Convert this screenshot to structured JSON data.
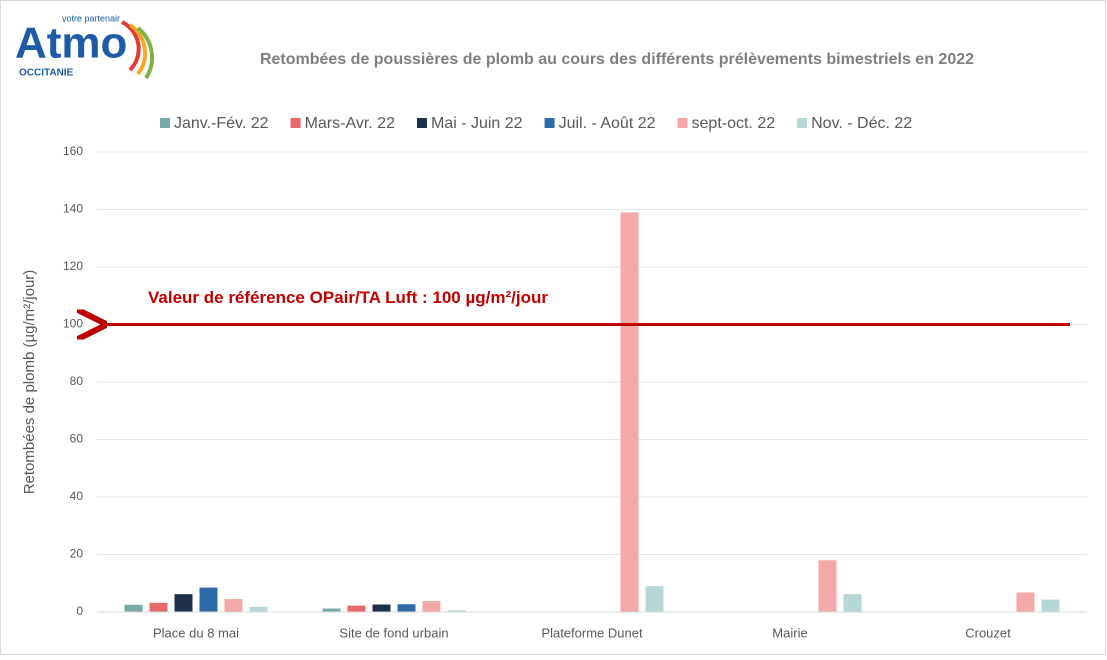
{
  "logo": {
    "name": "Atmo",
    "tagline": "votre partenair",
    "region": "OCCITANIE"
  },
  "chart_data": {
    "type": "bar",
    "title": "Retombées de poussières de plomb au cours des différents prélèvements bimestriels en 2022",
    "y_label": "Retombées  de plomb (µg/m²/jour)",
    "categories": [
      "Place du 8 mai",
      "Site de fond urbain",
      "Plateforme Dunet",
      "Mairie",
      "Crouzet"
    ],
    "series": [
      {
        "name": "Janv.-Fév. 22",
        "color": "#75aaa9",
        "values": [
          2.5,
          1.2,
          null,
          null,
          null
        ]
      },
      {
        "name": "Mars-Avr. 22",
        "color": "#e86868",
        "values": [
          3.2,
          2.2,
          null,
          null,
          null
        ]
      },
      {
        "name": "Mai - Juin 22",
        "color": "#1f3049",
        "values": [
          6.2,
          2.6,
          null,
          null,
          null
        ]
      },
      {
        "name": "Juil. - Août 22",
        "color": "#2e6aa8",
        "values": [
          8.5,
          2.7,
          null,
          null,
          null
        ]
      },
      {
        "name": "sept-oct. 22",
        "color": "#f4a8a8",
        "values": [
          4.5,
          3.8,
          139,
          18,
          6.8
        ]
      },
      {
        "name": "Nov. - Déc. 22",
        "color": "#b5d8d6",
        "values": [
          1.8,
          0.6,
          9,
          6.2,
          4.3
        ]
      }
    ],
    "ylim": [
      0,
      160
    ],
    "yticks": [
      0,
      20,
      40,
      60,
      80,
      100,
      120,
      140,
      160
    ],
    "grid": true,
    "legend": "top",
    "reference_line": {
      "value": 100,
      "label": "Valeur de référence  OPair/TA Luft : 100 µg/m²/jour",
      "color": "#c00000"
    }
  }
}
